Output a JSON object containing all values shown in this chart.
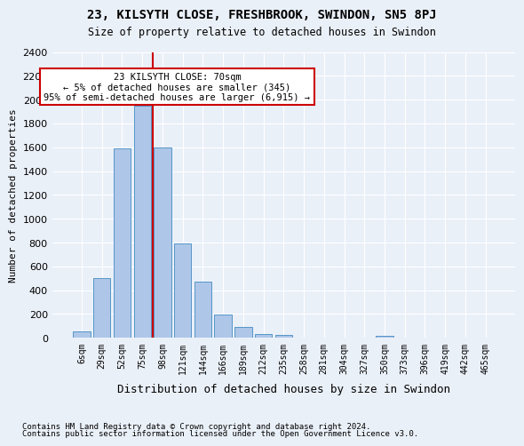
{
  "title": "23, KILSYTH CLOSE, FRESHBROOK, SWINDON, SN5 8PJ",
  "subtitle": "Size of property relative to detached houses in Swindon",
  "xlabel": "Distribution of detached houses by size in Swindon",
  "ylabel": "Number of detached properties",
  "footer1": "Contains HM Land Registry data © Crown copyright and database right 2024.",
  "footer2": "Contains public sector information licensed under the Open Government Licence v3.0.",
  "bar_labels": [
    "6sqm",
    "29sqm",
    "52sqm",
    "75sqm",
    "98sqm",
    "121sqm",
    "144sqm",
    "166sqm",
    "189sqm",
    "212sqm",
    "235sqm",
    "258sqm",
    "281sqm",
    "304sqm",
    "327sqm",
    "350sqm",
    "373sqm",
    "396sqm",
    "419sqm",
    "442sqm",
    "465sqm"
  ],
  "bar_values": [
    55,
    500,
    1590,
    1950,
    1600,
    790,
    470,
    195,
    90,
    35,
    25,
    0,
    0,
    0,
    0,
    20,
    0,
    0,
    0,
    0,
    0
  ],
  "bar_color": "#aec6e8",
  "bar_edge_color": "#5596c8",
  "ylim": [
    0,
    2400
  ],
  "yticks": [
    0,
    200,
    400,
    600,
    800,
    1000,
    1200,
    1400,
    1600,
    1800,
    2000,
    2200,
    2400
  ],
  "property_line_x": 3.5,
  "annotation_title": "23 KILSYTH CLOSE: 70sqm",
  "annotation_line1": "← 5% of detached houses are smaller (345)",
  "annotation_line2": "95% of semi-detached houses are larger (6,915) →",
  "annotation_box_color": "#ffffff",
  "annotation_box_edge": "#cc0000",
  "vline_color": "#cc0000",
  "bg_color": "#eaf0f8",
  "grid_color": "#ffffff"
}
